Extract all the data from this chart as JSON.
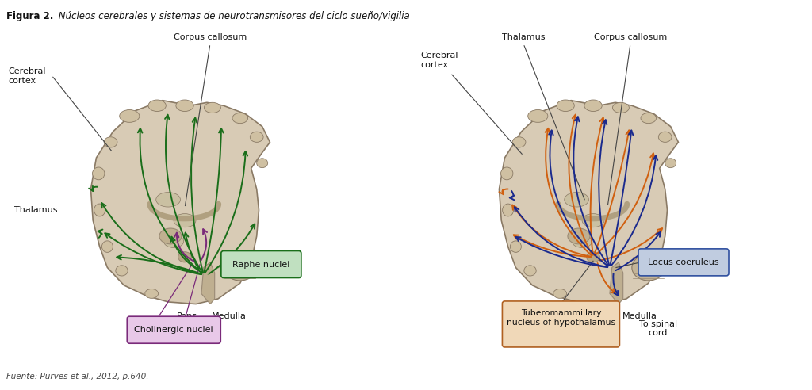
{
  "title_bold": "Figura 2.",
  "title_italic": " Núcleos cerebrales y sistemas de neurotransmisores del ciclo sueño/vigilia",
  "source": "Fuente: Purves et al., 2012, p.640.",
  "background_color": "#ffffff",
  "brain_fill": "#d8cbb5",
  "brain_edge": "#8a7a65",
  "inner_fill": "#c8b89a",
  "inner_edge": "#9a8a75",
  "green_color": "#1a6e1a",
  "purple_color": "#7a2a7a",
  "orange_color": "#d06010",
  "blue_color": "#1a2a8e",
  "raphe_box_fill": "#c0e0c0",
  "raphe_box_edge": "#1a6e1a",
  "cholin_box_fill": "#e8c8e8",
  "cholin_box_edge": "#7a2a7a",
  "locus_box_fill": "#c0cce0",
  "locus_box_edge": "#3050a0",
  "tubero_box_fill": "#f0d8b8",
  "tubero_box_edge": "#b06020"
}
